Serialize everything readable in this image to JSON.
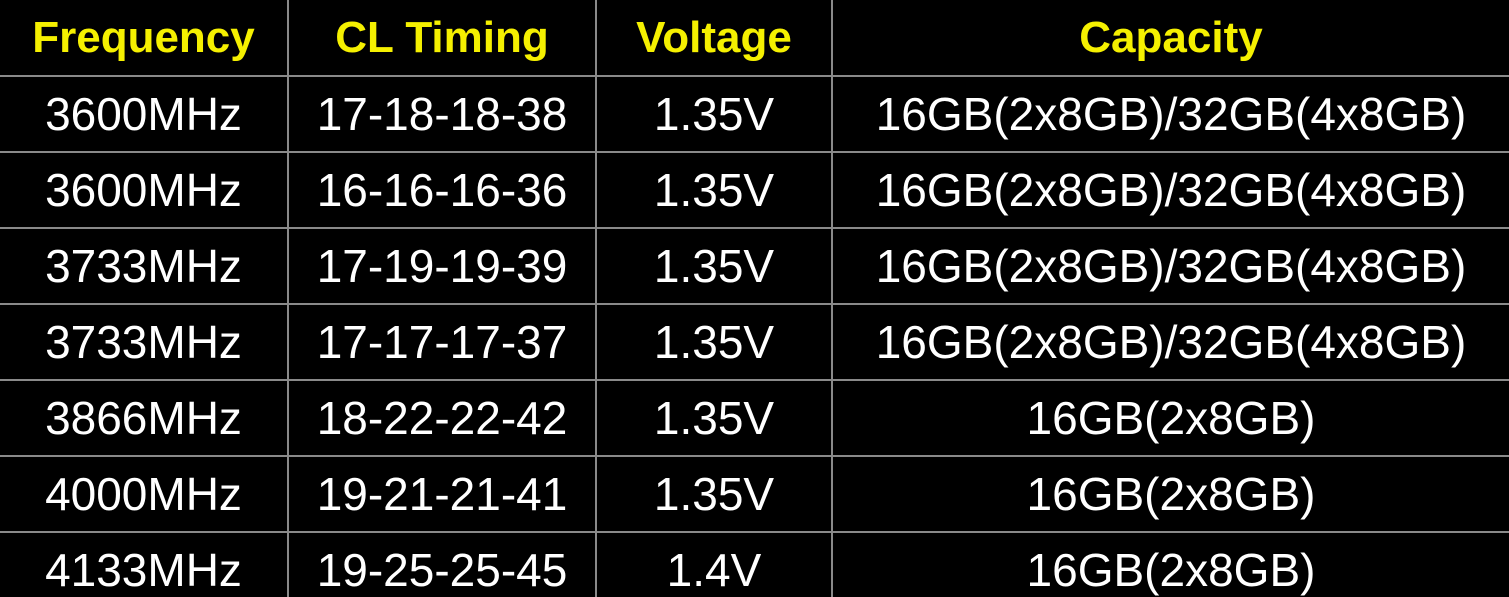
{
  "table": {
    "header": [
      "Frequency",
      "CL Timing",
      "Voltage",
      "Capacity"
    ],
    "rows": [
      [
        "3600MHz",
        "17-18-18-38",
        "1.35V",
        "16GB(2x8GB)/32GB(4x8GB)"
      ],
      [
        "3600MHz",
        "16-16-16-36",
        "1.35V",
        "16GB(2x8GB)/32GB(4x8GB)"
      ],
      [
        "3733MHz",
        "17-19-19-39",
        "1.35V",
        "16GB(2x8GB)/32GB(4x8GB)"
      ],
      [
        "3733MHz",
        "17-17-17-37",
        "1.35V",
        "16GB(2x8GB)/32GB(4x8GB)"
      ],
      [
        "3866MHz",
        "18-22-22-42",
        "1.35V",
        "16GB(2x8GB)"
      ],
      [
        "4000MHz",
        "19-21-21-41",
        "1.35V",
        "16GB(2x8GB)"
      ],
      [
        "4133MHz",
        "19-25-25-45",
        "1.4V",
        "16GB(2x8GB)"
      ]
    ]
  }
}
